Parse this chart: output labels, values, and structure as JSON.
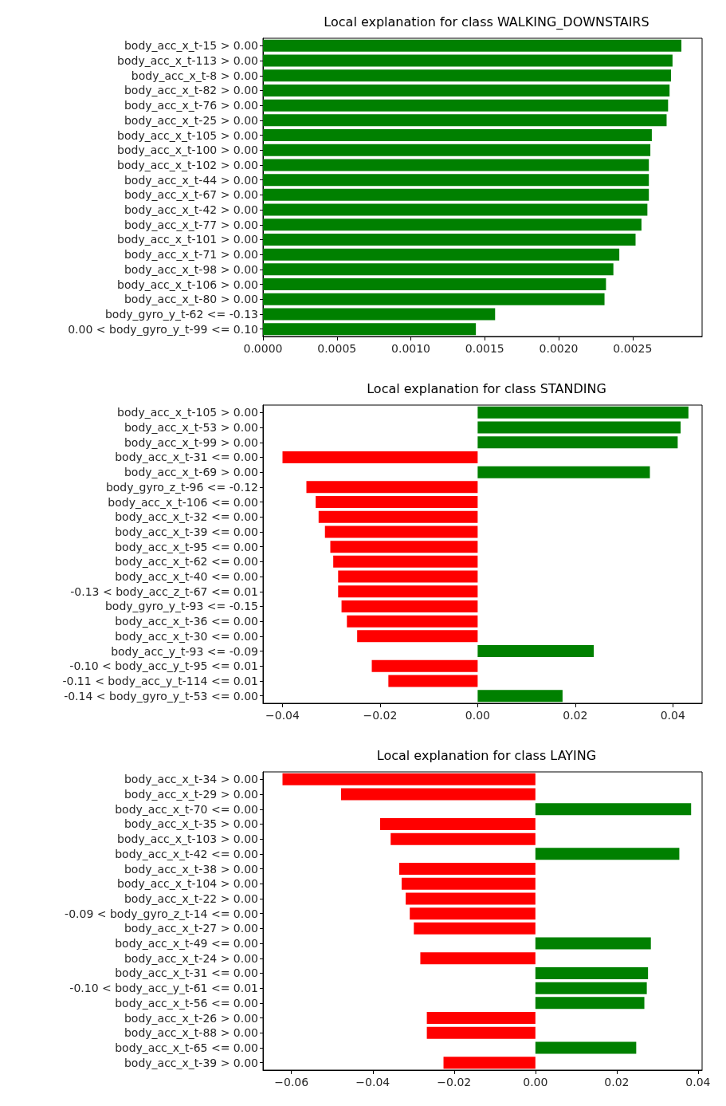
{
  "chart_data": [
    {
      "type": "bar",
      "orientation": "horizontal",
      "title": "Local explanation for class WALKING_DOWNSTAIRS",
      "categories": [
        "body_acc_x_t-15 > 0.00",
        "body_acc_x_t-113 > 0.00",
        "body_acc_x_t-8 > 0.00",
        "body_acc_x_t-82 > 0.00",
        "body_acc_x_t-76 > 0.00",
        "body_acc_x_t-25 > 0.00",
        "body_acc_x_t-105 > 0.00",
        "body_acc_x_t-100 > 0.00",
        "body_acc_x_t-102 > 0.00",
        "body_acc_x_t-44 > 0.00",
        "body_acc_x_t-67 > 0.00",
        "body_acc_x_t-42 > 0.00",
        "body_acc_x_t-77 > 0.00",
        "body_acc_x_t-101 > 0.00",
        "body_acc_x_t-71 > 0.00",
        "body_acc_x_t-98 > 0.00",
        "body_acc_x_t-106 > 0.00",
        "body_acc_x_t-80 > 0.00",
        "body_gyro_y_t-62 <= -0.13",
        "0.00 < body_gyro_y_t-99 <= 0.10"
      ],
      "values": [
        0.00283,
        0.00277,
        0.00276,
        0.00275,
        0.00274,
        0.00273,
        0.00263,
        0.00262,
        0.00261,
        0.00261,
        0.00261,
        0.0026,
        0.00256,
        0.00252,
        0.00241,
        0.00237,
        0.00232,
        0.00231,
        0.00157,
        0.00144
      ],
      "colors": [
        "#008000",
        "#008000",
        "#008000",
        "#008000",
        "#008000",
        "#008000",
        "#008000",
        "#008000",
        "#008000",
        "#008000",
        "#008000",
        "#008000",
        "#008000",
        "#008000",
        "#008000",
        "#008000",
        "#008000",
        "#008000",
        "#008000",
        "#008000"
      ],
      "xlim": [
        0,
        0.00297
      ],
      "xticks": [
        {
          "value": 0,
          "label": "0.0000"
        },
        {
          "value": 0.0005,
          "label": "0.0005"
        },
        {
          "value": 0.001,
          "label": "0.0010"
        },
        {
          "value": 0.0015,
          "label": "0.0015"
        },
        {
          "value": 0.002,
          "label": "0.0020"
        },
        {
          "value": 0.0025,
          "label": "0.0025"
        }
      ],
      "grid": false
    },
    {
      "type": "bar",
      "orientation": "horizontal",
      "title": "Local explanation for class STANDING",
      "categories": [
        "body_acc_x_t-105 > 0.00",
        "body_acc_x_t-53 > 0.00",
        "body_acc_x_t-99 > 0.00",
        "body_acc_x_t-31 <= 0.00",
        "body_acc_x_t-69 > 0.00",
        "body_gyro_z_t-96 <= -0.12",
        "body_acc_x_t-106 <= 0.00",
        "body_acc_x_t-32 <= 0.00",
        "body_acc_x_t-39 <= 0.00",
        "body_acc_x_t-95 <= 0.00",
        "body_acc_x_t-62 <= 0.00",
        "body_acc_x_t-40 <= 0.00",
        "-0.13 < body_acc_z_t-67 <= 0.01",
        "body_gyro_y_t-93 <= -0.15",
        "body_acc_x_t-36 <= 0.00",
        "body_acc_x_t-30 <= 0.00",
        "body_acc_y_t-93 <= -0.09",
        "-0.10 < body_acc_y_t-95 <= 0.01",
        "-0.11 < body_acc_y_t-114 <= 0.01",
        "-0.14 < body_gyro_y_t-53 <= 0.00"
      ],
      "values": [
        0.0432,
        0.0416,
        0.041,
        -0.04,
        0.0353,
        -0.0351,
        -0.0332,
        -0.0326,
        -0.0313,
        -0.0302,
        -0.0296,
        -0.0286,
        -0.0286,
        -0.0279,
        -0.0268,
        -0.0247,
        0.0238,
        -0.0217,
        -0.0183,
        0.0174
      ],
      "colors": [
        "#008000",
        "#008000",
        "#008000",
        "#ff0000",
        "#008000",
        "#ff0000",
        "#ff0000",
        "#ff0000",
        "#ff0000",
        "#ff0000",
        "#ff0000",
        "#ff0000",
        "#ff0000",
        "#ff0000",
        "#ff0000",
        "#ff0000",
        "#008000",
        "#ff0000",
        "#ff0000",
        "#008000"
      ],
      "xlim": [
        -0.044,
        0.046
      ],
      "xticks": [
        {
          "value": -0.04,
          "label": "−0.04"
        },
        {
          "value": -0.02,
          "label": "−0.02"
        },
        {
          "value": 0,
          "label": "0.00"
        },
        {
          "value": 0.02,
          "label": "0.02"
        },
        {
          "value": 0.04,
          "label": "0.04"
        }
      ],
      "grid": false
    },
    {
      "type": "bar",
      "orientation": "horizontal",
      "title": "Local explanation for class LAYING",
      "categories": [
        "body_acc_x_t-34 > 0.00",
        "body_acc_x_t-29 > 0.00",
        "body_acc_x_t-70 <= 0.00",
        "body_acc_x_t-35 > 0.00",
        "body_acc_x_t-103 > 0.00",
        "body_acc_x_t-42 <= 0.00",
        "body_acc_x_t-38 > 0.00",
        "body_acc_x_t-104 > 0.00",
        "body_acc_x_t-22 > 0.00",
        "-0.09 < body_gyro_z_t-14 <= 0.00",
        "body_acc_x_t-27 > 0.00",
        "body_acc_x_t-49 <= 0.00",
        "body_acc_x_t-24 > 0.00",
        "body_acc_x_t-31 <= 0.00",
        "-0.10 < body_acc_y_t-61 <= 0.01",
        "body_acc_x_t-56 <= 0.00",
        "body_acc_x_t-26 > 0.00",
        "body_acc_x_t-88 > 0.00",
        "body_acc_x_t-65 <= 0.00",
        "body_acc_x_t-39 > 0.00"
      ],
      "values": [
        -0.0622,
        -0.0478,
        0.0383,
        -0.0382,
        -0.0356,
        0.0354,
        -0.0335,
        -0.0329,
        -0.0319,
        -0.0309,
        -0.0299,
        0.0284,
        -0.0283,
        0.0277,
        0.0274,
        0.0268,
        -0.0267,
        -0.0267,
        0.0248,
        -0.0226
      ],
      "colors": [
        "#ff0000",
        "#ff0000",
        "#008000",
        "#ff0000",
        "#ff0000",
        "#008000",
        "#ff0000",
        "#ff0000",
        "#ff0000",
        "#ff0000",
        "#ff0000",
        "#008000",
        "#ff0000",
        "#008000",
        "#008000",
        "#008000",
        "#ff0000",
        "#ff0000",
        "#008000",
        "#ff0000"
      ],
      "xlim": [
        -0.067,
        0.041
      ],
      "xticks": [
        {
          "value": -0.06,
          "label": "−0.06"
        },
        {
          "value": -0.04,
          "label": "−0.04"
        },
        {
          "value": -0.02,
          "label": "−0.02"
        },
        {
          "value": 0,
          "label": "0.00"
        },
        {
          "value": 0.02,
          "label": "0.02"
        },
        {
          "value": 0.04,
          "label": "0.04"
        }
      ],
      "grid": false
    }
  ]
}
